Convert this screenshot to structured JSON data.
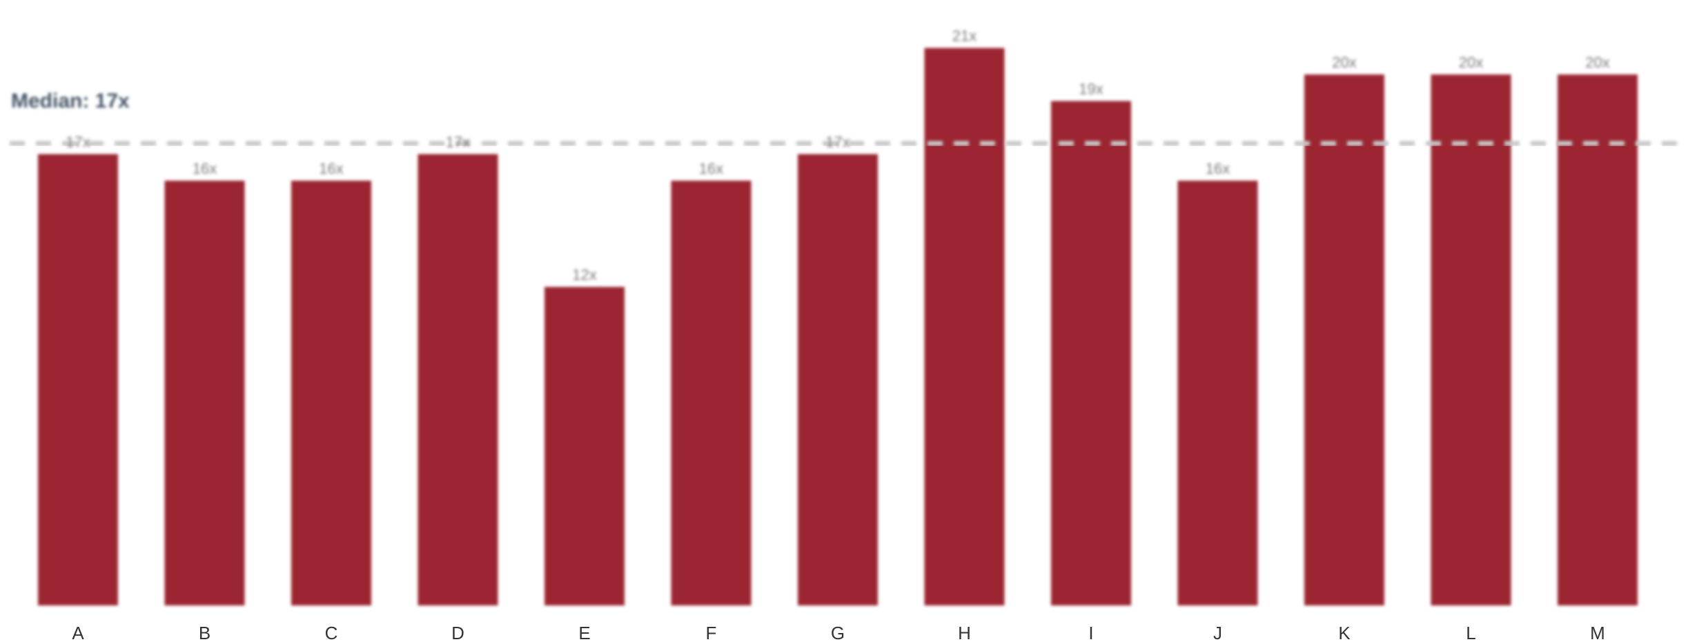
{
  "chart_data": {
    "type": "bar",
    "categories": [
      "A",
      "B",
      "C",
      "D",
      "E",
      "F",
      "G",
      "H",
      "I",
      "J",
      "K",
      "L",
      "M"
    ],
    "values": [
      17,
      16,
      16,
      17,
      12,
      16,
      17,
      21,
      19,
      16,
      20,
      20,
      20
    ],
    "value_labels": [
      "17x",
      "16x",
      "16x",
      "17x",
      "12x",
      "16x",
      "17x",
      "21x",
      "19x",
      "16x",
      "20x",
      "20x",
      "20x"
    ],
    "median": 17,
    "median_label": "Median: 17x",
    "bar_color": "#9b2830",
    "median_line_color": "#c8c8c8",
    "grid": false,
    "legend": "none",
    "ylim": [
      0,
      22
    ],
    "title": "",
    "xlabel": "",
    "ylabel": ""
  }
}
